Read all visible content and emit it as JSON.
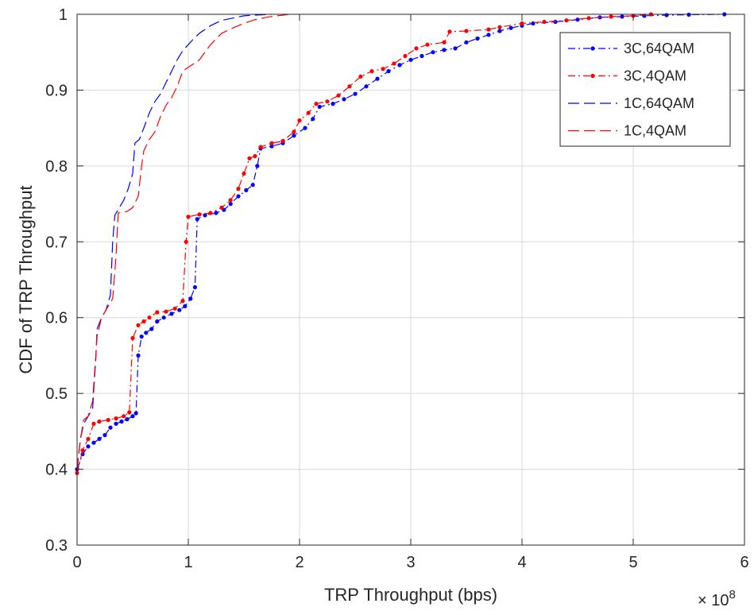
{
  "chart_data": {
    "type": "line",
    "title": "",
    "xlabel": "TRP Throughput (bps)",
    "ylabel": "CDF of TRP Throughput",
    "x_exponent_label": "× 10^8",
    "x_exponent_base": "× 10",
    "x_exponent_power": "8",
    "x_units_scale": 100000000,
    "xlim": [
      0,
      6
    ],
    "ylim": [
      0.3,
      1.0
    ],
    "x_ticks": [
      0,
      1,
      2,
      3,
      4,
      5,
      6
    ],
    "x_tick_labels": [
      "0",
      "1",
      "2",
      "3",
      "4",
      "5",
      "6"
    ],
    "y_ticks": [
      0.3,
      0.4,
      0.5,
      0.6,
      0.7,
      0.8,
      0.9,
      1.0
    ],
    "y_tick_labels": [
      "0.3",
      "0.4",
      "0.5",
      "0.6",
      "0.7",
      "0.8",
      "0.9",
      "1"
    ],
    "grid": true,
    "legend_position": "top-right",
    "colors": {
      "blue": "#0000ff",
      "red": "#ff0000",
      "grid": "#d9d9d9",
      "axis": "#262626"
    },
    "series": [
      {
        "name": "3C,64QAM",
        "color": "#0000ff",
        "style": "dash-dot",
        "marker": "dot",
        "points": [
          [
            0.0,
            0.4
          ],
          [
            0.05,
            0.42
          ],
          [
            0.1,
            0.43
          ],
          [
            0.15,
            0.435
          ],
          [
            0.2,
            0.44
          ],
          [
            0.25,
            0.445
          ],
          [
            0.3,
            0.455
          ],
          [
            0.35,
            0.46
          ],
          [
            0.4,
            0.463
          ],
          [
            0.45,
            0.466
          ],
          [
            0.5,
            0.47
          ],
          [
            0.53,
            0.474
          ],
          [
            0.55,
            0.55
          ],
          [
            0.58,
            0.575
          ],
          [
            0.62,
            0.58
          ],
          [
            0.67,
            0.585
          ],
          [
            0.72,
            0.595
          ],
          [
            0.78,
            0.6
          ],
          [
            0.85,
            0.605
          ],
          [
            0.92,
            0.61
          ],
          [
            0.97,
            0.615
          ],
          [
            1.02,
            0.625
          ],
          [
            1.06,
            0.64
          ],
          [
            1.08,
            0.73
          ],
          [
            1.15,
            0.735
          ],
          [
            1.25,
            0.738
          ],
          [
            1.32,
            0.742
          ],
          [
            1.38,
            0.75
          ],
          [
            1.45,
            0.76
          ],
          [
            1.52,
            0.768
          ],
          [
            1.58,
            0.775
          ],
          [
            1.62,
            0.8
          ],
          [
            1.65,
            0.823
          ],
          [
            1.75,
            0.826
          ],
          [
            1.85,
            0.83
          ],
          [
            1.95,
            0.84
          ],
          [
            2.05,
            0.85
          ],
          [
            2.12,
            0.862
          ],
          [
            2.18,
            0.878
          ],
          [
            2.3,
            0.882
          ],
          [
            2.4,
            0.888
          ],
          [
            2.5,
            0.895
          ],
          [
            2.6,
            0.905
          ],
          [
            2.7,
            0.915
          ],
          [
            2.8,
            0.925
          ],
          [
            2.9,
            0.933
          ],
          [
            3.0,
            0.94
          ],
          [
            3.1,
            0.945
          ],
          [
            3.2,
            0.95
          ],
          [
            3.3,
            0.953
          ],
          [
            3.4,
            0.955
          ],
          [
            3.5,
            0.963
          ],
          [
            3.6,
            0.968
          ],
          [
            3.7,
            0.973
          ],
          [
            3.8,
            0.978
          ],
          [
            3.9,
            0.982
          ],
          [
            4.0,
            0.985
          ],
          [
            4.1,
            0.988
          ],
          [
            4.3,
            0.99
          ],
          [
            4.5,
            0.993
          ],
          [
            4.7,
            0.996
          ],
          [
            4.9,
            0.997
          ],
          [
            5.1,
            0.998
          ],
          [
            5.3,
            0.999
          ],
          [
            5.5,
            0.9995
          ],
          [
            5.82,
            1.0
          ]
        ]
      },
      {
        "name": "3C,4QAM",
        "color": "#ff0000",
        "style": "dash-dot",
        "marker": "dot",
        "points": [
          [
            0.0,
            0.395
          ],
          [
            0.05,
            0.425
          ],
          [
            0.1,
            0.44
          ],
          [
            0.15,
            0.46
          ],
          [
            0.2,
            0.463
          ],
          [
            0.28,
            0.465
          ],
          [
            0.35,
            0.467
          ],
          [
            0.42,
            0.47
          ],
          [
            0.47,
            0.475
          ],
          [
            0.5,
            0.573
          ],
          [
            0.55,
            0.59
          ],
          [
            0.6,
            0.595
          ],
          [
            0.65,
            0.6
          ],
          [
            0.72,
            0.607
          ],
          [
            0.8,
            0.608
          ],
          [
            0.88,
            0.612
          ],
          [
            0.95,
            0.622
          ],
          [
            0.98,
            0.7
          ],
          [
            1.0,
            0.733
          ],
          [
            1.1,
            0.736
          ],
          [
            1.2,
            0.738
          ],
          [
            1.3,
            0.745
          ],
          [
            1.38,
            0.755
          ],
          [
            1.45,
            0.77
          ],
          [
            1.5,
            0.79
          ],
          [
            1.55,
            0.81
          ],
          [
            1.6,
            0.813
          ],
          [
            1.65,
            0.825
          ],
          [
            1.75,
            0.83
          ],
          [
            1.85,
            0.833
          ],
          [
            1.95,
            0.845
          ],
          [
            2.0,
            0.86
          ],
          [
            2.08,
            0.87
          ],
          [
            2.15,
            0.882
          ],
          [
            2.25,
            0.885
          ],
          [
            2.35,
            0.893
          ],
          [
            2.45,
            0.905
          ],
          [
            2.55,
            0.918
          ],
          [
            2.65,
            0.925
          ],
          [
            2.75,
            0.928
          ],
          [
            2.85,
            0.935
          ],
          [
            2.95,
            0.945
          ],
          [
            3.05,
            0.955
          ],
          [
            3.15,
            0.96
          ],
          [
            3.3,
            0.963
          ],
          [
            3.35,
            0.977
          ],
          [
            3.5,
            0.978
          ],
          [
            3.7,
            0.98
          ],
          [
            3.8,
            0.983
          ],
          [
            4.0,
            0.988
          ],
          [
            4.2,
            0.99
          ],
          [
            4.4,
            0.992
          ],
          [
            4.6,
            0.995
          ],
          [
            4.8,
            0.997
          ],
          [
            5.0,
            0.998
          ],
          [
            5.16,
            1.0
          ]
        ]
      },
      {
        "name": "1C,64QAM",
        "color": "#0000ff",
        "style": "dashed",
        "marker": "none",
        "points": [
          [
            0.0,
            0.4
          ],
          [
            0.03,
            0.44
          ],
          [
            0.06,
            0.46
          ],
          [
            0.1,
            0.47
          ],
          [
            0.14,
            0.48
          ],
          [
            0.17,
            0.55
          ],
          [
            0.18,
            0.585
          ],
          [
            0.22,
            0.6
          ],
          [
            0.26,
            0.61
          ],
          [
            0.3,
            0.63
          ],
          [
            0.32,
            0.7
          ],
          [
            0.34,
            0.735
          ],
          [
            0.38,
            0.745
          ],
          [
            0.42,
            0.755
          ],
          [
            0.46,
            0.77
          ],
          [
            0.5,
            0.79
          ],
          [
            0.52,
            0.83
          ],
          [
            0.56,
            0.835
          ],
          [
            0.6,
            0.85
          ],
          [
            0.65,
            0.87
          ],
          [
            0.7,
            0.885
          ],
          [
            0.75,
            0.895
          ],
          [
            0.8,
            0.91
          ],
          [
            0.85,
            0.925
          ],
          [
            0.9,
            0.94
          ],
          [
            0.95,
            0.952
          ],
          [
            1.0,
            0.96
          ],
          [
            1.05,
            0.968
          ],
          [
            1.1,
            0.975
          ],
          [
            1.2,
            0.985
          ],
          [
            1.3,
            0.992
          ],
          [
            1.4,
            0.995
          ],
          [
            1.5,
            0.998
          ],
          [
            1.6,
            0.999
          ],
          [
            1.75,
            1.0
          ]
        ]
      },
      {
        "name": "1C,4QAM",
        "color": "#ff0000",
        "style": "dashed",
        "marker": "none",
        "points": [
          [
            0.0,
            0.4
          ],
          [
            0.03,
            0.44
          ],
          [
            0.06,
            0.465
          ],
          [
            0.1,
            0.47
          ],
          [
            0.14,
            0.49
          ],
          [
            0.18,
            0.575
          ],
          [
            0.22,
            0.6
          ],
          [
            0.26,
            0.61
          ],
          [
            0.32,
            0.625
          ],
          [
            0.35,
            0.68
          ],
          [
            0.37,
            0.738
          ],
          [
            0.45,
            0.74
          ],
          [
            0.5,
            0.745
          ],
          [
            0.55,
            0.76
          ],
          [
            0.58,
            0.8
          ],
          [
            0.6,
            0.82
          ],
          [
            0.65,
            0.835
          ],
          [
            0.7,
            0.845
          ],
          [
            0.75,
            0.865
          ],
          [
            0.8,
            0.88
          ],
          [
            0.85,
            0.89
          ],
          [
            0.9,
            0.905
          ],
          [
            0.95,
            0.925
          ],
          [
            1.0,
            0.93
          ],
          [
            1.1,
            0.94
          ],
          [
            1.2,
            0.96
          ],
          [
            1.3,
            0.975
          ],
          [
            1.4,
            0.982
          ],
          [
            1.5,
            0.988
          ],
          [
            1.6,
            0.993
          ],
          [
            1.7,
            0.996
          ],
          [
            1.8,
            0.998
          ],
          [
            1.92,
            1.0
          ]
        ]
      }
    ]
  }
}
